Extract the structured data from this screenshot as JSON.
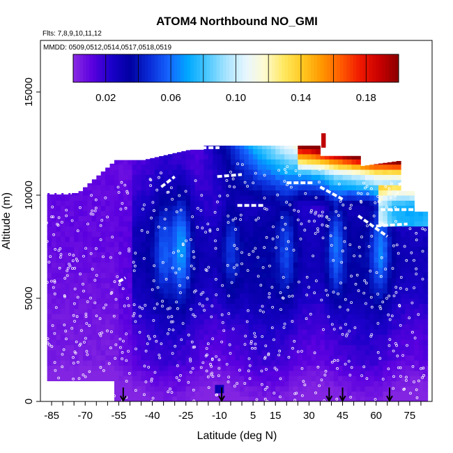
{
  "chart_data": {
    "type": "heatmap",
    "title": "ATOM4 Northbound NO_GMI",
    "subtitle_flights": "Flts: 7,8,9,10,11,12",
    "subtitle_dates": "MMDD: 0509,0512,0514,0517,0518,0519",
    "xlabel": "Latitude (deg N)",
    "ylabel": "Altitude (m)",
    "xlim": [
      -90,
      85
    ],
    "ylim": [
      0,
      17500
    ],
    "x_ticks": [
      "-85",
      "-70",
      "-55",
      "-40",
      "-25",
      "-10",
      "5",
      "15",
      "30",
      "45",
      "60",
      "75"
    ],
    "y_ticks": [
      "0",
      "5000",
      "10000",
      "15000"
    ],
    "colorbar": {
      "range": [
        0.0,
        0.2
      ],
      "tick_labels": [
        "0.02",
        "0.06",
        "0.10",
        "0.14",
        "0.18"
      ],
      "colors": [
        "#8a2be2",
        "#5a00e0",
        "#1a00c8",
        "#0000a0",
        "#0a2cd8",
        "#1565ff",
        "#00a8ff",
        "#4cc8ff",
        "#a8e4ff",
        "#e6f6ff",
        "#fffbd0",
        "#ffe860",
        "#ffc820",
        "#ff9600",
        "#ff5a00",
        "#f01800",
        "#c80000",
        "#8b0000"
      ]
    },
    "heatmap_summary": {
      "low_values_near_surface": 0.005,
      "mid_troposphere_values": 0.03,
      "upper_troposphere_max": 0.19
    },
    "arrow_latitudes": [
      -53,
      -9,
      39,
      45,
      66
    ]
  }
}
